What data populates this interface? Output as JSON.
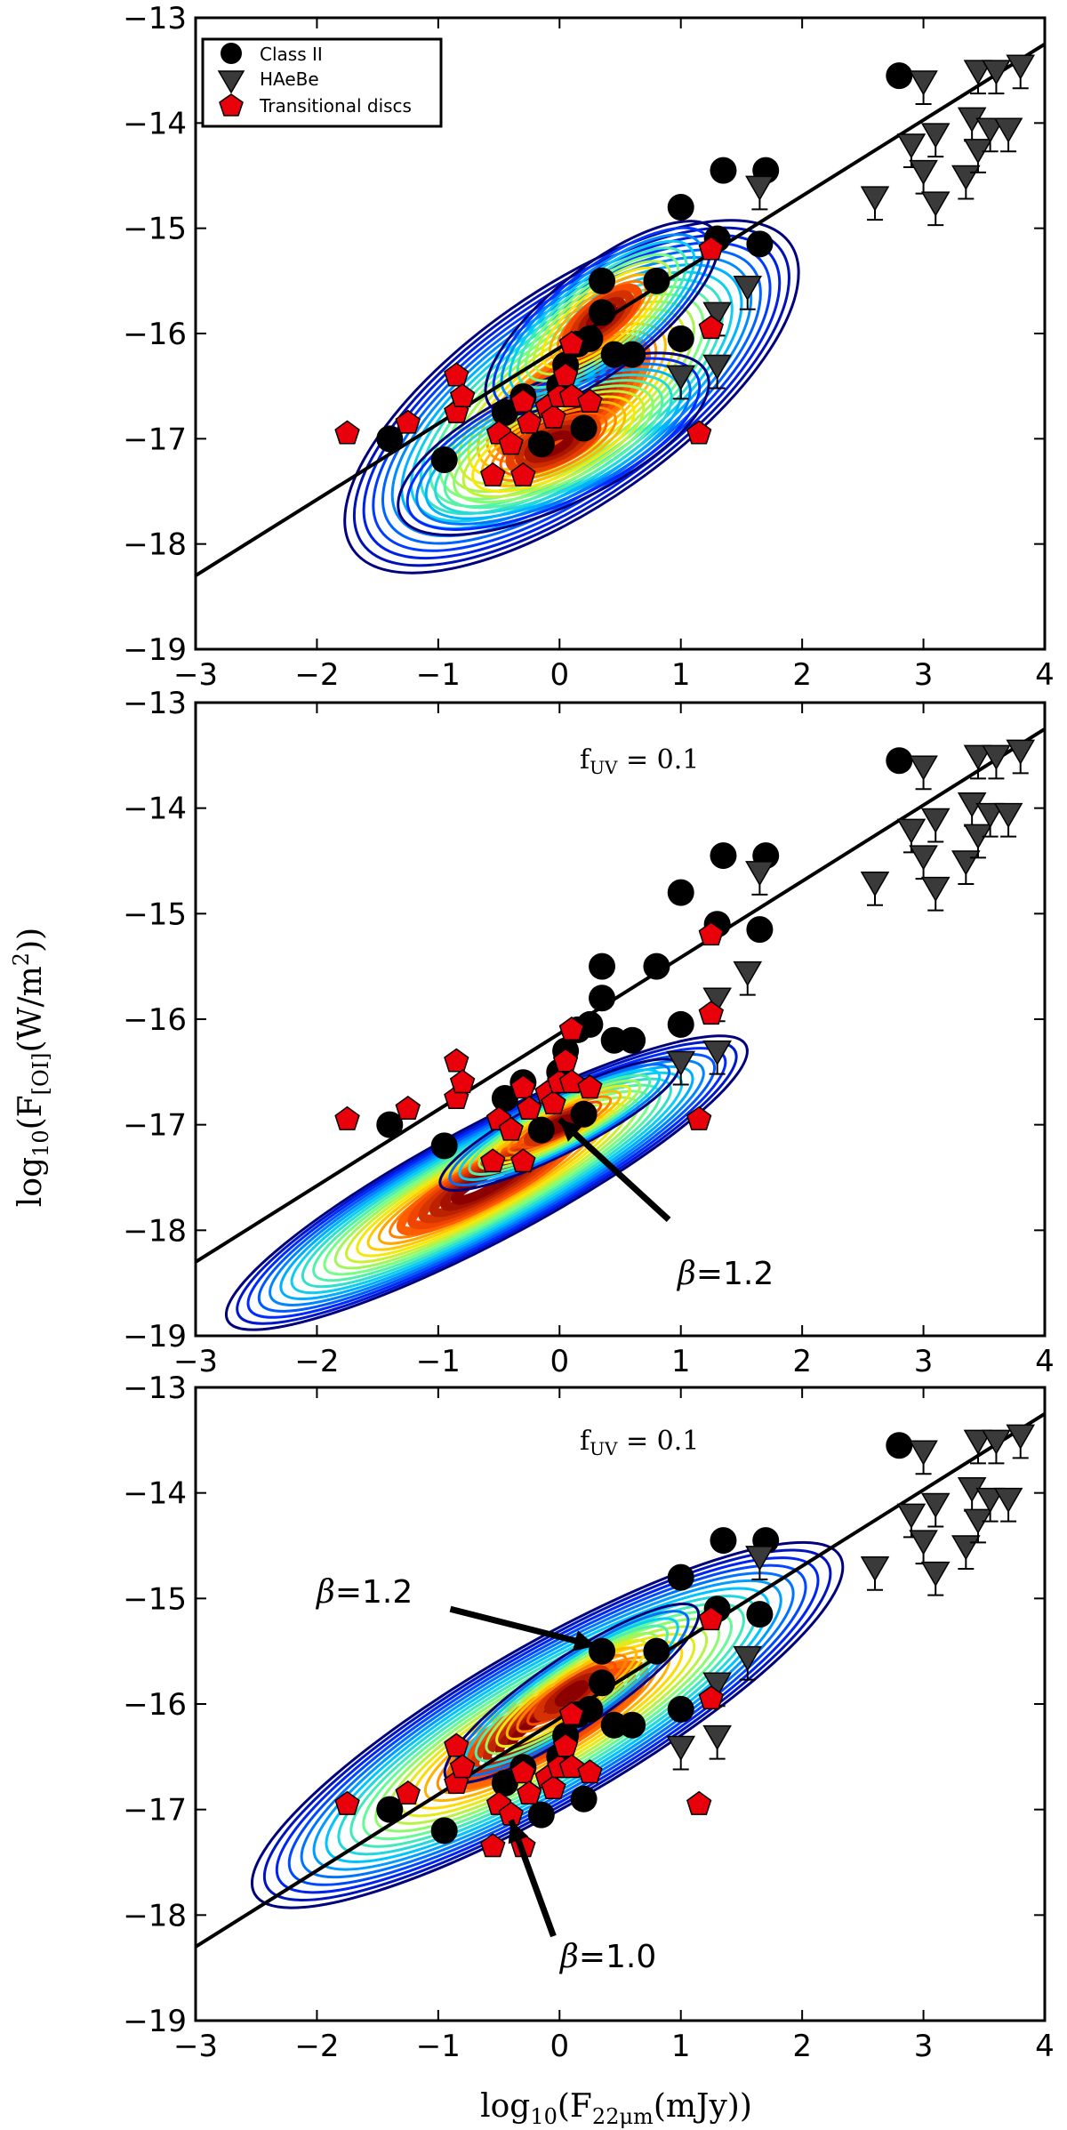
{
  "chart_data": {
    "type": "scatter",
    "xlabel": "log10(F22μm(mJy))",
    "ylabel": "log10(F[OI](W/m²))",
    "xlim": [
      -3,
      4
    ],
    "ylim": [
      -19,
      -13
    ],
    "xticks": [
      -3,
      -2,
      -1,
      0,
      1,
      2,
      3,
      4
    ],
    "yticks": [
      -19,
      -18,
      -17,
      -16,
      -15,
      -14,
      -13
    ],
    "xtick_labels": [
      "−3",
      "−2",
      "−1",
      "0",
      "1",
      "2",
      "3",
      "4"
    ],
    "ytick_labels": [
      "−19",
      "−18",
      "−17",
      "−16",
      "−15",
      "−14",
      "−13"
    ],
    "legend": {
      "position": "top-left",
      "entries": [
        {
          "label": "Class II",
          "marker": "circle",
          "color": "#000000"
        },
        {
          "label": "HAeBe",
          "marker": "triangle-down",
          "color": "#3a3a3a"
        },
        {
          "label": "Transitional discs",
          "marker": "pentagon",
          "color": "#e8000b"
        }
      ]
    },
    "fit_line": {
      "points": [
        [
          -3,
          -18.3
        ],
        [
          4,
          -13.25
        ]
      ],
      "color": "#000000"
    },
    "series": [
      {
        "name": "Class II",
        "marker": "circle",
        "color": "#000000",
        "points": [
          [
            -1.4,
            -17.0
          ],
          [
            -0.95,
            -17.2
          ],
          [
            -0.45,
            -16.75
          ],
          [
            -0.15,
            -17.05
          ],
          [
            -0.3,
            -16.6
          ],
          [
            0.0,
            -16.5
          ],
          [
            0.05,
            -16.3
          ],
          [
            0.15,
            -16.1
          ],
          [
            0.2,
            -16.9
          ],
          [
            0.25,
            -16.05
          ],
          [
            0.35,
            -15.8
          ],
          [
            0.35,
            -15.5
          ],
          [
            0.45,
            -16.2
          ],
          [
            0.6,
            -16.2
          ],
          [
            0.8,
            -15.5
          ],
          [
            1.0,
            -16.05
          ],
          [
            1.0,
            -14.8
          ],
          [
            1.3,
            -15.1
          ],
          [
            1.35,
            -14.45
          ],
          [
            1.65,
            -15.15
          ],
          [
            1.7,
            -14.45
          ],
          [
            2.8,
            -13.55
          ]
        ]
      },
      {
        "name": "HAeBe",
        "marker": "triangle-down",
        "color": "#3a3a3a",
        "points": [
          [
            1.0,
            -16.4
          ],
          [
            1.3,
            -15.8
          ],
          [
            1.3,
            -16.3
          ],
          [
            1.55,
            -15.55
          ],
          [
            1.65,
            -14.6
          ],
          [
            2.6,
            -14.7
          ],
          [
            2.9,
            -14.2
          ],
          [
            3.0,
            -14.45
          ],
          [
            3.0,
            -13.6
          ],
          [
            3.1,
            -14.75
          ],
          [
            3.1,
            -14.1
          ],
          [
            3.35,
            -14.5
          ],
          [
            3.4,
            -13.95
          ],
          [
            3.45,
            -14.25
          ],
          [
            3.45,
            -13.5
          ],
          [
            3.55,
            -14.05
          ],
          [
            3.6,
            -13.5
          ],
          [
            3.7,
            -14.05
          ],
          [
            3.8,
            -13.45
          ]
        ]
      },
      {
        "name": "Transitional discs",
        "marker": "pentagon",
        "color": "#e8000b",
        "points": [
          [
            -1.75,
            -16.95
          ],
          [
            -1.25,
            -16.85
          ],
          [
            -0.85,
            -16.75
          ],
          [
            -0.85,
            -16.4
          ],
          [
            -0.8,
            -16.6
          ],
          [
            -0.55,
            -17.35
          ],
          [
            -0.5,
            -16.95
          ],
          [
            -0.4,
            -17.05
          ],
          [
            -0.3,
            -17.35
          ],
          [
            -0.3,
            -16.65
          ],
          [
            -0.25,
            -16.85
          ],
          [
            -0.1,
            -16.7
          ],
          [
            -0.05,
            -16.8
          ],
          [
            0.0,
            -16.6
          ],
          [
            0.05,
            -16.4
          ],
          [
            0.1,
            -16.1
          ],
          [
            0.1,
            -16.6
          ],
          [
            0.25,
            -16.65
          ],
          [
            1.15,
            -16.95
          ],
          [
            1.25,
            -15.2
          ],
          [
            1.25,
            -15.95
          ]
        ]
      }
    ],
    "panels": [
      {
        "annotations": [],
        "contour_center": [
          0.0,
          -16.5
        ],
        "contour_note": "broad KDE, two lobes"
      },
      {
        "annotations": [
          {
            "text": "fUV = 0.1"
          },
          {
            "text": "β=1.2",
            "arrow_from": [
              0.9,
              -17.9
            ],
            "arrow_to": [
              0.0,
              -16.95
            ]
          }
        ]
      },
      {
        "annotations": [
          {
            "text": "fUV = 0.1"
          },
          {
            "text": "β=1.2",
            "arrow_from": [
              -0.9,
              -15.1
            ],
            "arrow_to": [
              0.3,
              -15.45
            ]
          },
          {
            "text": "β=1.0",
            "arrow_from": [
              -0.05,
              -18.2
            ],
            "arrow_to": [
              -0.4,
              -17.1
            ]
          }
        ]
      }
    ]
  },
  "labels": {
    "fuv_prefix": "f",
    "fuv_sub": "UV",
    "fuv_value": " = 0.1",
    "beta_symbol": "β",
    "beta_12": "=1.2",
    "beta_10": "=1.0",
    "ylabel_log": "log",
    "ylabel_sub10": "10",
    "ylabel_open": "(F",
    "ylabel_sub": "[OI]",
    "ylabel_rest": "(W/m",
    "ylabel_sup": "2",
    "ylabel_close": "))",
    "xlabel_log": "log",
    "xlabel_sub10": "10",
    "xlabel_open": "(F",
    "xlabel_sub": "22μm",
    "xlabel_rest": "(mJy))"
  },
  "colors": {
    "class2": "#000000",
    "haebe": "#3a3a3a",
    "transitional": "#e8000b",
    "fit_line": "#000000",
    "axes": "#000000"
  }
}
